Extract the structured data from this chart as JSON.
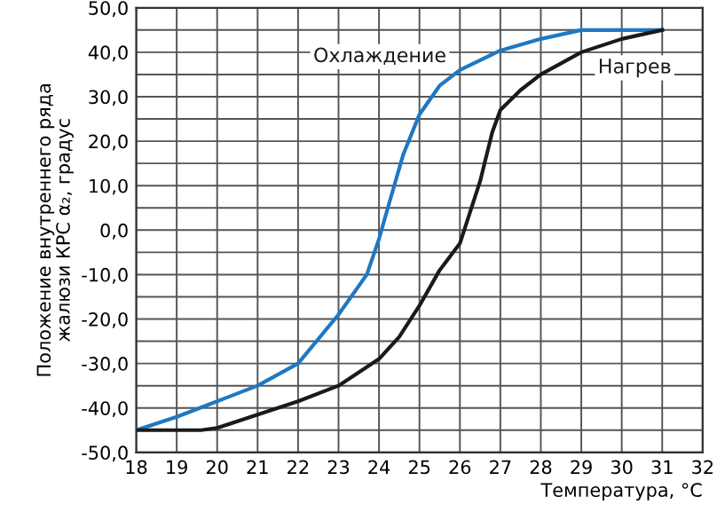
{
  "chart_data": {
    "type": "line",
    "xlabel": "Температура, °C",
    "ylabel": "Положение внутреннего ряда\nжалюзи КРС α₂, градус",
    "series": [
      {
        "name": "Охлаждение",
        "color": "#1f78c1",
        "x": [
          18,
          19,
          20,
          21,
          22,
          23,
          23.7,
          24,
          24.25,
          24.6,
          25,
          25.5,
          26,
          27,
          28,
          29,
          30,
          31
        ],
        "values": [
          -45,
          -42,
          -38.5,
          -35,
          -30,
          -19,
          -10,
          -2,
          6,
          17,
          26,
          32.5,
          36,
          40.4,
          43,
          45,
          45,
          45
        ]
      },
      {
        "name": "Нагрев",
        "color": "#1a1a1a",
        "x": [
          18,
          19.6,
          20,
          21,
          22,
          23,
          24,
          24.5,
          25,
          25.5,
          26,
          26.5,
          26.8,
          27,
          27.5,
          28,
          29,
          30,
          31
        ],
        "values": [
          -45,
          -45,
          -44.5,
          -41.5,
          -38.5,
          -35,
          -29,
          -24,
          -17,
          -9,
          -3,
          11,
          22,
          27,
          31.5,
          35,
          40,
          43,
          45
        ]
      }
    ],
    "xlim": [
      18,
      32
    ],
    "xticks": [
      18,
      19,
      20,
      21,
      22,
      23,
      24,
      25,
      26,
      27,
      28,
      29,
      30,
      31,
      32
    ],
    "ylim": [
      -50,
      50
    ],
    "yticks": [
      {
        "value": -50,
        "label": "-50,0"
      },
      {
        "value": -40,
        "label": "-40,0"
      },
      {
        "value": -30,
        "label": "-30,0"
      },
      {
        "value": -20,
        "label": "-20,0"
      },
      {
        "value": -10,
        "label": "-10,0"
      },
      {
        "value": 0,
        "label": "0,0"
      },
      {
        "value": 10,
        "label": "10,0"
      },
      {
        "value": 20,
        "label": "20,0"
      },
      {
        "value": 30,
        "label": "30,0"
      },
      {
        "value": 40,
        "label": "40,0"
      },
      {
        "value": 50,
        "label": "50,0"
      }
    ],
    "grid": true,
    "legend": false,
    "marker": "none",
    "line_style": "solid"
  }
}
